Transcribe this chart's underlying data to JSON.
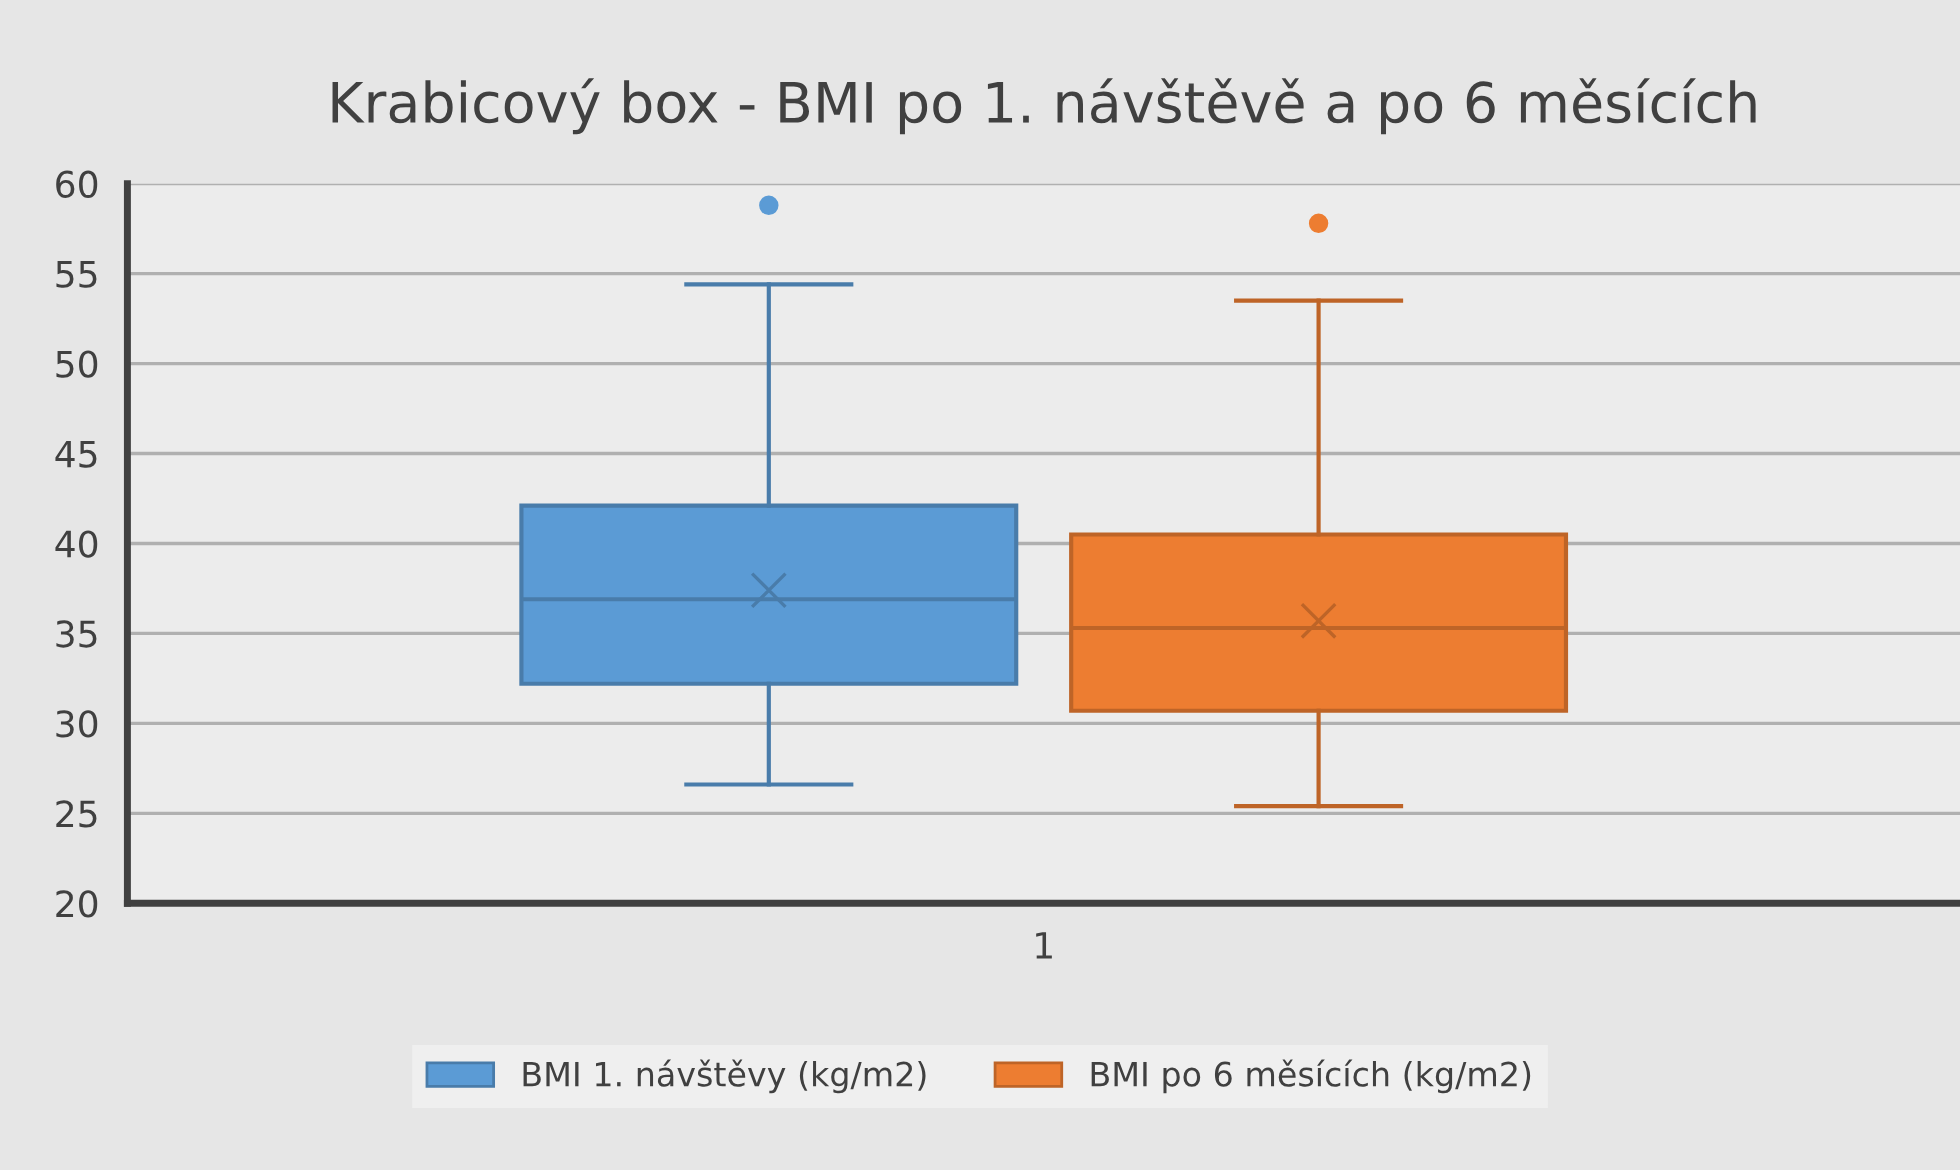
{
  "chart_data": {
    "type": "box",
    "title": "Krabicový box - BMI po 1. návštěvě a po 6 měsících",
    "categories": [
      "1"
    ],
    "series": [
      {
        "name": "BMI 1. návštěvy (kg/m2)",
        "color": "#5b9bd5",
        "boxes": [
          {
            "low": 26.6,
            "q1": 32.2,
            "median": 36.9,
            "q3": 42.1,
            "high": 54.4,
            "mean": 37.4,
            "outliers": [
              58.8
            ]
          }
        ]
      },
      {
        "name": "BMI po 6 měsících (kg/m2)",
        "color": "#ed7d31",
        "boxes": [
          {
            "low": 25.4,
            "q1": 30.7,
            "median": 35.3,
            "q3": 40.5,
            "high": 53.5,
            "mean": 35.7,
            "outliers": [
              57.8
            ]
          }
        ]
      }
    ],
    "ylim": [
      20,
      60
    ],
    "yticks": [
      20,
      25,
      30,
      35,
      40,
      45,
      50,
      55,
      60
    ],
    "grid": "y",
    "legend": "bottom"
  }
}
